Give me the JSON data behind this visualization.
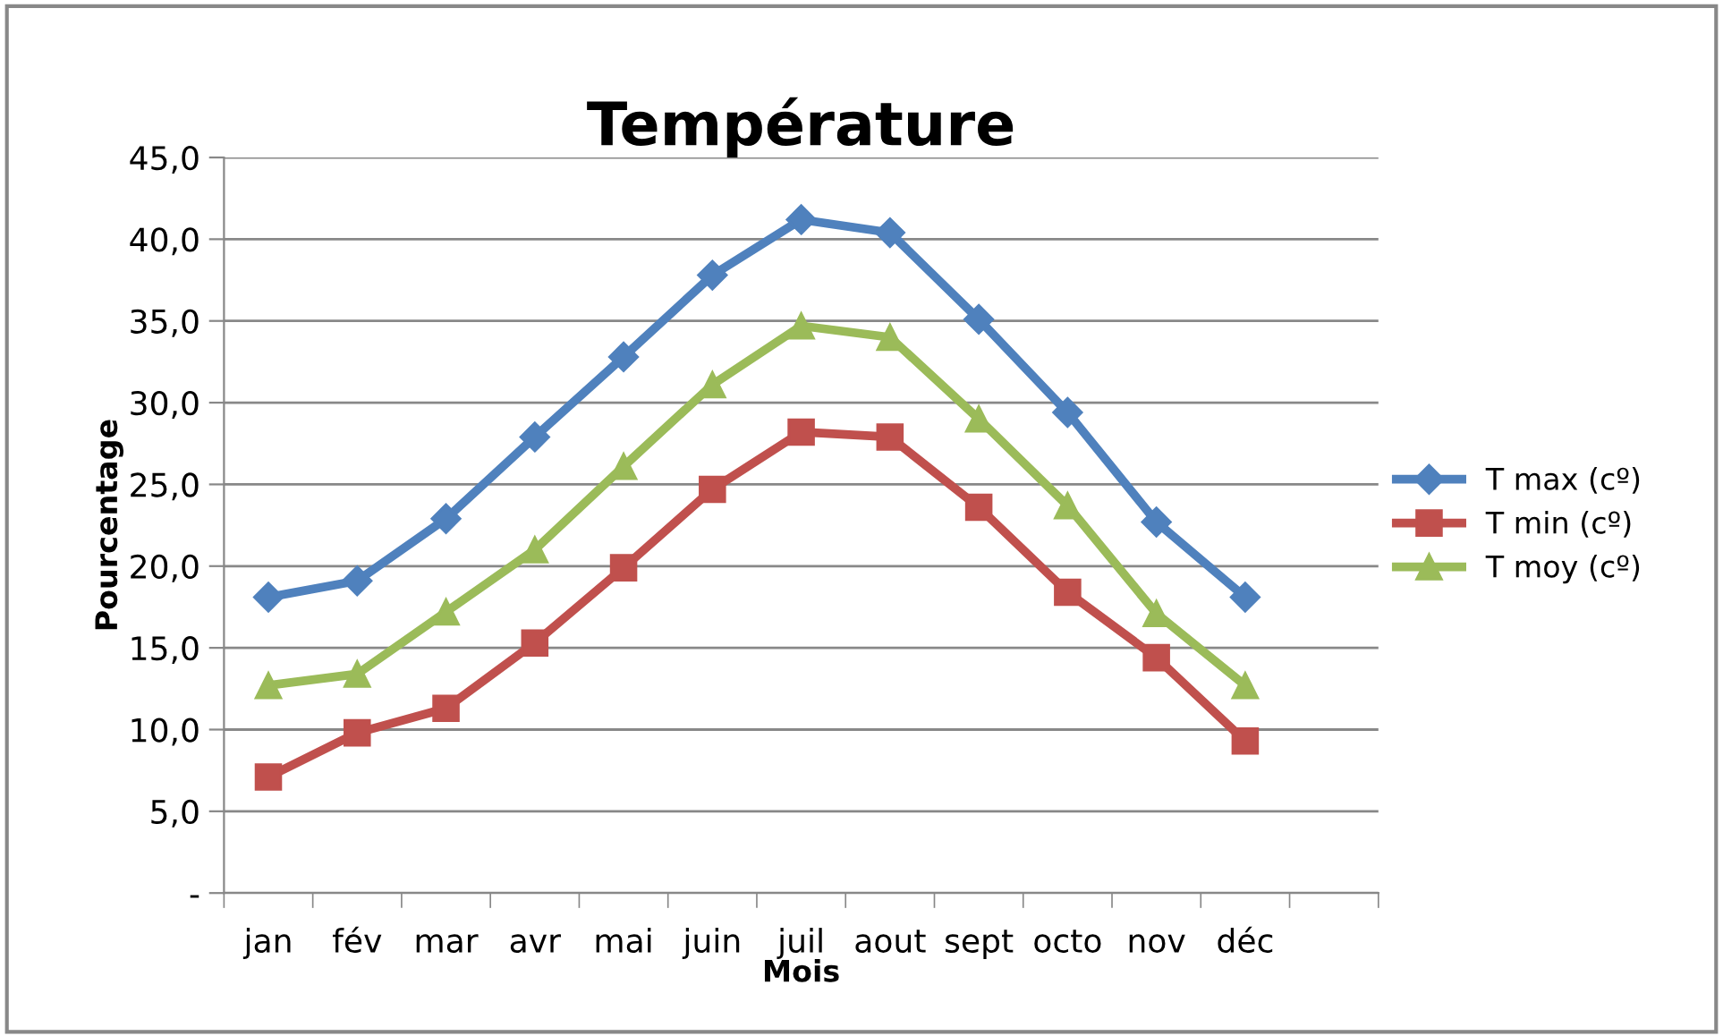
{
  "chart_data": {
    "type": "line",
    "title": "Température",
    "xlabel": "Mois",
    "ylabel": "Pourcentage",
    "categories": [
      "jan",
      "fév",
      "mar",
      "avr",
      "mai",
      "juin",
      "juil",
      "aout",
      "sept",
      "octo",
      "nov",
      "déc",
      null
    ],
    "series": [
      {
        "name": "T max (cº)",
        "color": "#4f81bd",
        "marker": "diamond",
        "values": [
          18.1,
          19.1,
          22.9,
          27.9,
          32.8,
          37.8,
          41.2,
          40.4,
          35.1,
          29.4,
          22.7,
          18.1,
          null
        ]
      },
      {
        "name": "T min (cº)",
        "color": "#c0504d",
        "marker": "square",
        "values": [
          7.1,
          9.8,
          11.3,
          15.3,
          19.9,
          24.7,
          28.2,
          27.9,
          23.6,
          18.4,
          14.4,
          9.3,
          null
        ]
      },
      {
        "name": "T moy (cº)",
        "color": "#9bbb59",
        "marker": "triangle",
        "values": [
          12.7,
          13.4,
          17.2,
          21.0,
          26.1,
          31.1,
          34.7,
          34.0,
          29.0,
          23.7,
          17.1,
          12.7,
          null
        ]
      }
    ],
    "ylim": [
      0,
      45
    ],
    "yticks": [
      {
        "value": 0,
        "label": "-"
      },
      {
        "value": 5,
        "label": "5,0"
      },
      {
        "value": 10,
        "label": "10,0"
      },
      {
        "value": 15,
        "label": "15,0"
      },
      {
        "value": 20,
        "label": "20,0"
      },
      {
        "value": 25,
        "label": "25,0"
      },
      {
        "value": 30,
        "label": "30,0"
      },
      {
        "value": 35,
        "label": "35,0"
      },
      {
        "value": 40,
        "label": "40,0"
      },
      {
        "value": 45,
        "label": "45,0"
      }
    ],
    "grid": "y",
    "legend": "right",
    "line_style": "solid"
  }
}
